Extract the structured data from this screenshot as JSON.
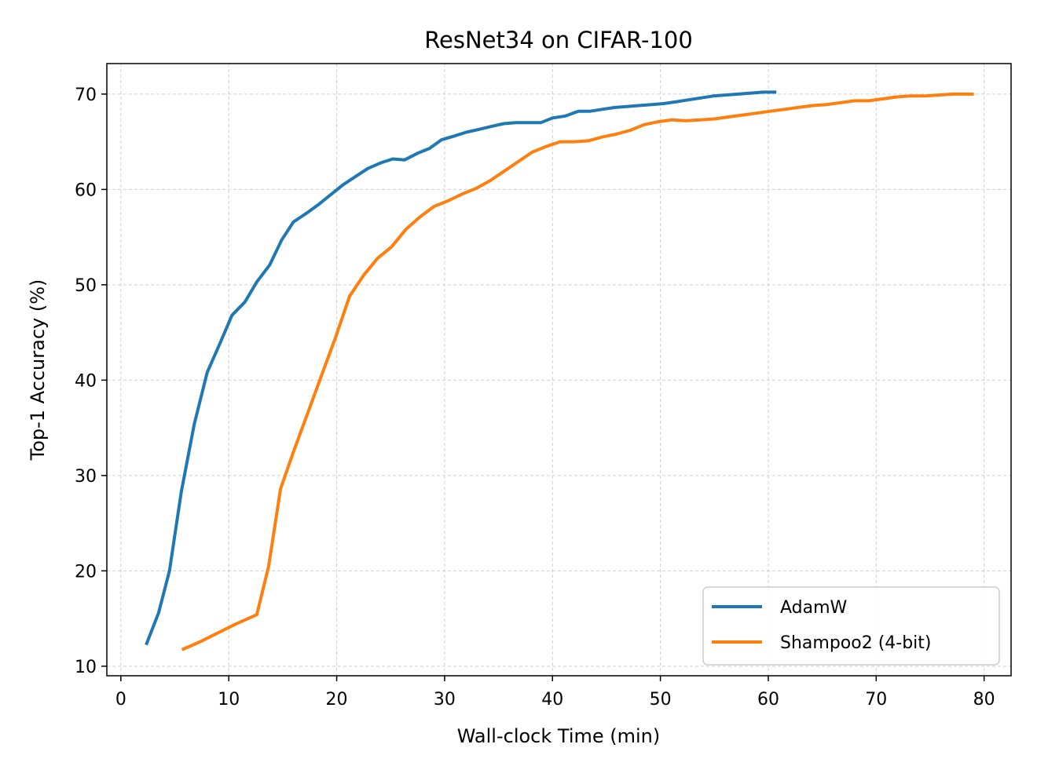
{
  "chart_data": {
    "type": "line",
    "title": "ResNet34 on CIFAR-100",
    "xlabel": "Wall-clock Time (min)",
    "ylabel": "Top-1 Accuracy (%)",
    "xlim": [
      -1.3,
      82.5
    ],
    "ylim": [
      9.0,
      73.2
    ],
    "xticks": [
      0,
      10,
      20,
      30,
      40,
      50,
      60,
      70,
      80
    ],
    "yticks": [
      10,
      20,
      30,
      40,
      50,
      60,
      70
    ],
    "grid": true,
    "legend_position": "lower-right",
    "series": [
      {
        "name": "AdamW",
        "color": "#1f77b4",
        "x": [
          2.4,
          3.5,
          4.5,
          5.6,
          6.8,
          8.0,
          9.2,
          10.3,
          11.5,
          12.6,
          13.8,
          14.9,
          16.0,
          17.2,
          18.3,
          19.5,
          20.6,
          21.8,
          22.9,
          24.1,
          25.2,
          26.3,
          27.5,
          28.6,
          29.7,
          30.9,
          32.0,
          33.2,
          34.3,
          35.5,
          36.6,
          37.7,
          38.9,
          40.0,
          41.2,
          42.4,
          43.5,
          44.6,
          45.8,
          46.9,
          48.0,
          49.2,
          50.3,
          51.5,
          52.6,
          53.8,
          54.9,
          56.0,
          57.2,
          58.3,
          59.5,
          60.6
        ],
        "y": [
          12.4,
          15.6,
          20.0,
          28.3,
          35.4,
          40.8,
          43.9,
          46.8,
          48.2,
          50.3,
          52.1,
          54.7,
          56.6,
          57.5,
          58.4,
          59.5,
          60.5,
          61.4,
          62.2,
          62.8,
          63.2,
          63.1,
          63.8,
          64.3,
          65.2,
          65.6,
          66.0,
          66.3,
          66.6,
          66.9,
          67.0,
          67.0,
          67.0,
          67.5,
          67.7,
          68.2,
          68.2,
          68.4,
          68.6,
          68.7,
          68.8,
          68.9,
          69.0,
          69.2,
          69.4,
          69.6,
          69.8,
          69.9,
          70.0,
          70.1,
          70.2,
          70.2
        ]
      },
      {
        "name": "Shampoo2 (4-bit)",
        "color": "#ff7f0e",
        "x": [
          5.8,
          7.4,
          9.0,
          10.6,
          12.6,
          13.7,
          14.8,
          16.0,
          17.3,
          18.6,
          19.9,
          21.2,
          22.5,
          23.8,
          25.1,
          26.4,
          27.7,
          29.0,
          30.3,
          31.6,
          32.9,
          34.2,
          35.5,
          36.8,
          38.1,
          39.4,
          40.7,
          42.0,
          43.3,
          44.6,
          45.9,
          47.2,
          48.5,
          49.8,
          51.1,
          52.4,
          53.7,
          55.0,
          56.3,
          57.6,
          58.9,
          60.2,
          61.5,
          62.8,
          64.1,
          65.4,
          66.7,
          68.0,
          69.3,
          70.6,
          71.9,
          73.2,
          74.5,
          75.8,
          77.1,
          78.9
        ],
        "y": [
          11.8,
          12.6,
          13.5,
          14.4,
          15.4,
          20.5,
          28.6,
          32.5,
          36.5,
          40.5,
          44.5,
          48.8,
          51.0,
          52.8,
          54.0,
          55.8,
          57.1,
          58.2,
          58.8,
          59.5,
          60.1,
          60.9,
          61.9,
          62.9,
          63.9,
          64.5,
          65.0,
          65.0,
          65.1,
          65.5,
          65.8,
          66.2,
          66.8,
          67.1,
          67.3,
          67.2,
          67.3,
          67.4,
          67.6,
          67.8,
          68.0,
          68.2,
          68.4,
          68.6,
          68.8,
          68.9,
          69.1,
          69.3,
          69.3,
          69.5,
          69.7,
          69.8,
          69.8,
          69.9,
          70.0,
          70.0
        ]
      }
    ]
  }
}
